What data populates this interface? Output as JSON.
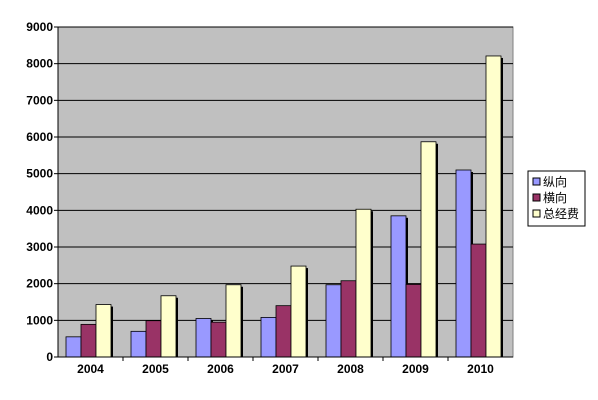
{
  "chart_data": {
    "type": "bar",
    "categories": [
      "2004",
      "2005",
      "2006",
      "2007",
      "2008",
      "2009",
      "2010"
    ],
    "series": [
      {
        "name": "纵向",
        "color": "#9999ff",
        "values": [
          550,
          700,
          1050,
          1080,
          1970,
          3850,
          5100
        ]
      },
      {
        "name": "横向",
        "color": "#993366",
        "values": [
          890,
          990,
          950,
          1400,
          2080,
          1980,
          3080
        ]
      },
      {
        "name": "总经费",
        "color": "#ffffcc",
        "values": [
          1430,
          1670,
          1970,
          2480,
          4030,
          5870,
          8210
        ]
      }
    ],
    "ylim": [
      0,
      9000
    ],
    "yticks": [
      "0",
      "1000",
      "2000",
      "3000",
      "4000",
      "5000",
      "6000",
      "7000",
      "8000",
      "9000"
    ],
    "grid": true,
    "plot_background": "#c0c0c0",
    "legend_position": "right"
  }
}
